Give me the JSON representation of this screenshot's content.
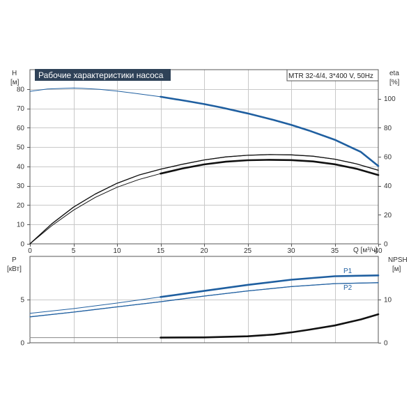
{
  "chart_data": [
    {
      "type": "line",
      "title": "Рабочие характеристики насоса",
      "subtitle": "MTR 32-4/4, 3*400 V, 50Hz",
      "x_axis": {
        "label": "Q [м³/ч]",
        "range": [
          0,
          40
        ],
        "ticks": [
          "0",
          "5",
          "10",
          "15",
          "20",
          "25",
          "30",
          "35",
          "40"
        ]
      },
      "y_axis_left": {
        "label_top": "H",
        "label_unit": "[м]",
        "range": [
          0,
          90
        ],
        "ticks": [
          "0",
          "10",
          "20",
          "30",
          "40",
          "50",
          "60",
          "70",
          "80"
        ]
      },
      "y_axis_right": {
        "label_top": "eta",
        "label_unit": "[%]",
        "range": [
          0,
          120
        ],
        "ticks": [
          "0",
          "20",
          "40",
          "60",
          "80",
          "100"
        ]
      },
      "grid": true,
      "series": [
        {
          "name": "H",
          "axis": "left",
          "color": "#1f5fa0",
          "x": [
            0,
            2,
            4,
            5,
            6,
            8,
            10,
            12,
            15,
            18,
            20,
            22,
            25,
            28,
            30,
            32,
            35,
            38,
            40
          ],
          "y": [
            78.8,
            80,
            80.4,
            80.5,
            80.4,
            79.8,
            78.9,
            77.8,
            76,
            73.8,
            72.2,
            70.4,
            67.4,
            64,
            61.5,
            58.6,
            53.8,
            47.5,
            40.2
          ],
          "bold_from_x": 15
        },
        {
          "axis": "right",
          "color": "#111111",
          "x": [
            0,
            2.5,
            5,
            7.5,
            10,
            12.5,
            15,
            17.5,
            20,
            22.5,
            25,
            27.5,
            30,
            32.5,
            35,
            37.5,
            40
          ],
          "y": [
            0,
            12.5,
            23.2,
            32,
            39,
            44.3,
            48.4,
            51.9,
            54.7,
            56.6,
            57.6,
            57.9,
            57.7,
            56.8,
            54.8,
            51.7,
            47.4
          ],
          "bold_from_x": 15
        },
        {
          "axis": "right",
          "color": "#111111",
          "x": [
            0,
            2.5,
            5,
            7.5,
            10,
            12.5,
            15,
            17.5,
            20,
            22.5,
            25,
            27.5,
            30,
            32.5,
            35,
            37.5,
            40
          ],
          "y": [
            0,
            13.8,
            25.3,
            34.3,
            41.7,
            47.4,
            51.4,
            54.8,
            57.8,
            59.9,
            61,
            61.5,
            61.3,
            60.4,
            58.3,
            55.1,
            50.7
          ],
          "bold_from_x": 40
        }
      ]
    },
    {
      "type": "line",
      "x_axis": {
        "range": [
          0,
          40
        ]
      },
      "y_axis_left": {
        "label_top": "P",
        "label_unit": "[кВт]",
        "range": [
          0,
          10
        ],
        "ticks": [
          "0",
          "5"
        ]
      },
      "y_axis_right": {
        "label_top": "NPSH",
        "label_unit": "[м]",
        "range": [
          0,
          20
        ],
        "ticks": [
          "0",
          "10"
        ]
      },
      "grid": true,
      "series": [
        {
          "name": "P1",
          "axis": "left",
          "color": "#1f5fa0",
          "x": [
            0,
            5,
            10,
            15,
            20,
            25,
            30,
            35,
            40
          ],
          "y": [
            3.4,
            3.95,
            4.6,
            5.3,
            6.0,
            6.7,
            7.3,
            7.7,
            7.8
          ],
          "bold_from_x": 15
        },
        {
          "name": "P2",
          "axis": "left",
          "color": "#1f5fa0",
          "x": [
            0,
            5,
            10,
            15,
            20,
            25,
            30,
            35,
            40
          ],
          "y": [
            3.0,
            3.55,
            4.15,
            4.75,
            5.4,
            6.0,
            6.5,
            6.85,
            6.95
          ],
          "bold_from_x": 40
        },
        {
          "name": "NPSH",
          "axis": "right",
          "color": "#111111",
          "x": [
            0,
            15,
            20,
            25,
            28,
            30,
            32,
            35,
            38,
            40
          ],
          "y": [
            1.2,
            1.2,
            1.25,
            1.5,
            1.9,
            2.4,
            3.0,
            4.0,
            5.4,
            6.6
          ],
          "bold_from_x": 15,
          "thin_color": "#888888"
        }
      ]
    }
  ]
}
